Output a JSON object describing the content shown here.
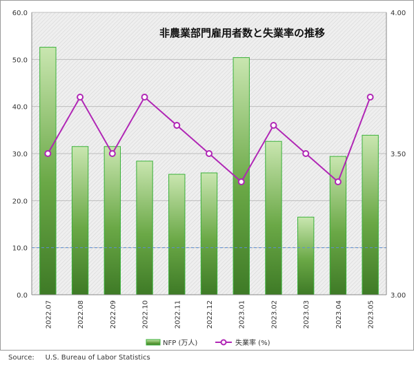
{
  "chart_data": {
    "type": "bar+line",
    "title": "非農業部門雇用者数と失業率の推移",
    "categories": [
      "2022.07",
      "2022.08",
      "2022.09",
      "2022.10",
      "2022.11",
      "2022.12",
      "2023.01",
      "2023.02",
      "2023.03",
      "2023.04",
      "2023.05"
    ],
    "series": [
      {
        "name": "NFP (万人)",
        "type": "bar",
        "axis": "left",
        "values": [
          52.6,
          31.5,
          31.5,
          28.4,
          25.6,
          25.9,
          50.4,
          32.6,
          16.5,
          29.4,
          33.9
        ]
      },
      {
        "name": "失業率 (%)",
        "type": "line",
        "axis": "right",
        "values": [
          3.5,
          3.7,
          3.5,
          3.7,
          3.6,
          3.5,
          3.4,
          3.6,
          3.5,
          3.4,
          3.7
        ]
      }
    ],
    "left_axis": {
      "min": 0,
      "max": 60,
      "ticks": [
        "0.0",
        "10.0",
        "20.0",
        "30.0",
        "40.0",
        "50.0",
        "60.0"
      ]
    },
    "right_axis": {
      "min": 3.0,
      "max": 4.0,
      "ticks": [
        "3.00",
        "3.50",
        "4.00"
      ]
    },
    "reference_line": {
      "axis": "left",
      "value": 10
    },
    "grid": true,
    "legend_position": "bottom"
  },
  "colors": {
    "bar_dark": "#3e7a26",
    "bar_mid": "#6aa846",
    "bar_light": "#c9e6b0",
    "bar_edge": "#3ab03a",
    "line": "#b026b5",
    "marker_fill": "#ffffff",
    "grid": "#bdbdbd",
    "ref_line": "#5b8fd6"
  },
  "source": "Source:     U.S. Bureau of Labor Statistics"
}
